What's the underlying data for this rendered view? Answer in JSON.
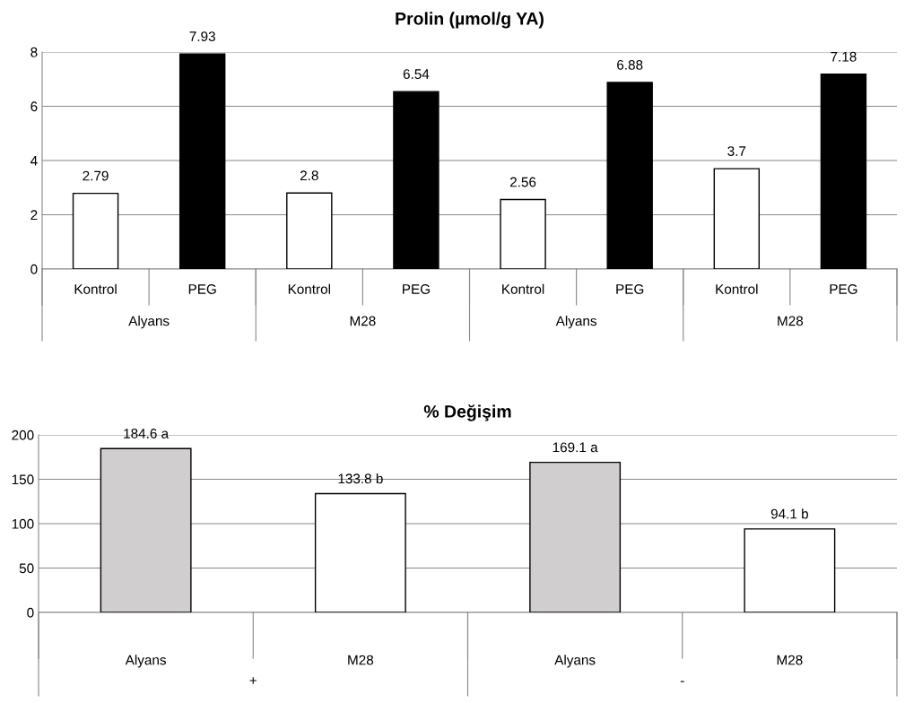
{
  "chart_data": [
    {
      "type": "bar",
      "title": "Prolin (µmol/g YA)",
      "categories": [
        "Kontrol",
        "PEG",
        "Kontrol",
        "PEG",
        "Kontrol",
        "PEG",
        "Kontrol",
        "PEG"
      ],
      "values": [
        2.79,
        7.93,
        2.8,
        6.54,
        2.56,
        6.88,
        3.7,
        7.18
      ],
      "colors": [
        "#ffffff",
        "#000000",
        "#ffffff",
        "#000000",
        "#ffffff",
        "#000000",
        "#ffffff",
        "#000000"
      ],
      "ylim": [
        0,
        8
      ],
      "yticks": [
        0,
        2,
        4,
        6,
        8
      ],
      "grid": "y",
      "data_labels": true,
      "annotations": [
        "Alyans",
        "M28",
        "Alyans",
        "M28"
      ]
    },
    {
      "type": "bar",
      "title": "% Değişim",
      "categories": [
        "Alyans",
        "M28",
        "Alyans",
        "M28"
      ],
      "values": [
        184.6,
        133.8,
        169.1,
        94.1
      ],
      "colors": [
        "#d0cece",
        "#ffffff",
        "#d0cece",
        "#ffffff"
      ],
      "value_labels": [
        "184.6 a",
        "133.8 b",
        "169.1 a",
        "94.1 b"
      ],
      "ylim": [
        0,
        200
      ],
      "yticks": [
        0,
        50,
        100,
        150,
        200
      ],
      "grid": "y",
      "annotations": [
        "+",
        "-"
      ]
    }
  ]
}
